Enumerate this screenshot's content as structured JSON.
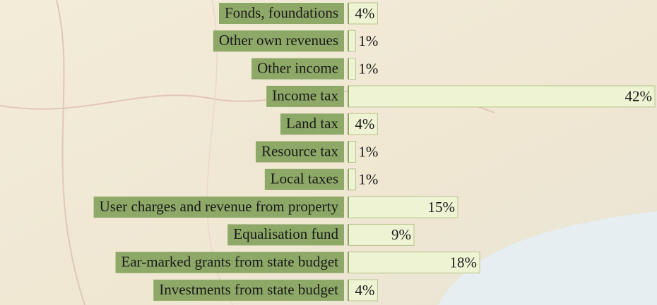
{
  "chart_data": {
    "type": "bar",
    "orientation": "horizontal",
    "categories": [
      "Fonds, foundations",
      "Other own revenues",
      "Other income",
      "Income tax",
      "Land tax",
      "Resource tax",
      "Local taxes",
      "User charges and revenue from property",
      "Equalisation fund",
      "Ear-marked grants from state budget",
      "Investments from state budget"
    ],
    "values": [
      4,
      1,
      1,
      42,
      4,
      1,
      1,
      15,
      9,
      18,
      4
    ],
    "value_labels": [
      "4%",
      "1%",
      "1%",
      "42%",
      "4%",
      "1%",
      "1%",
      "15%",
      "9%",
      "18%",
      "4%"
    ],
    "color": "#eef3d4",
    "label_color": "#8ea867"
  }
}
